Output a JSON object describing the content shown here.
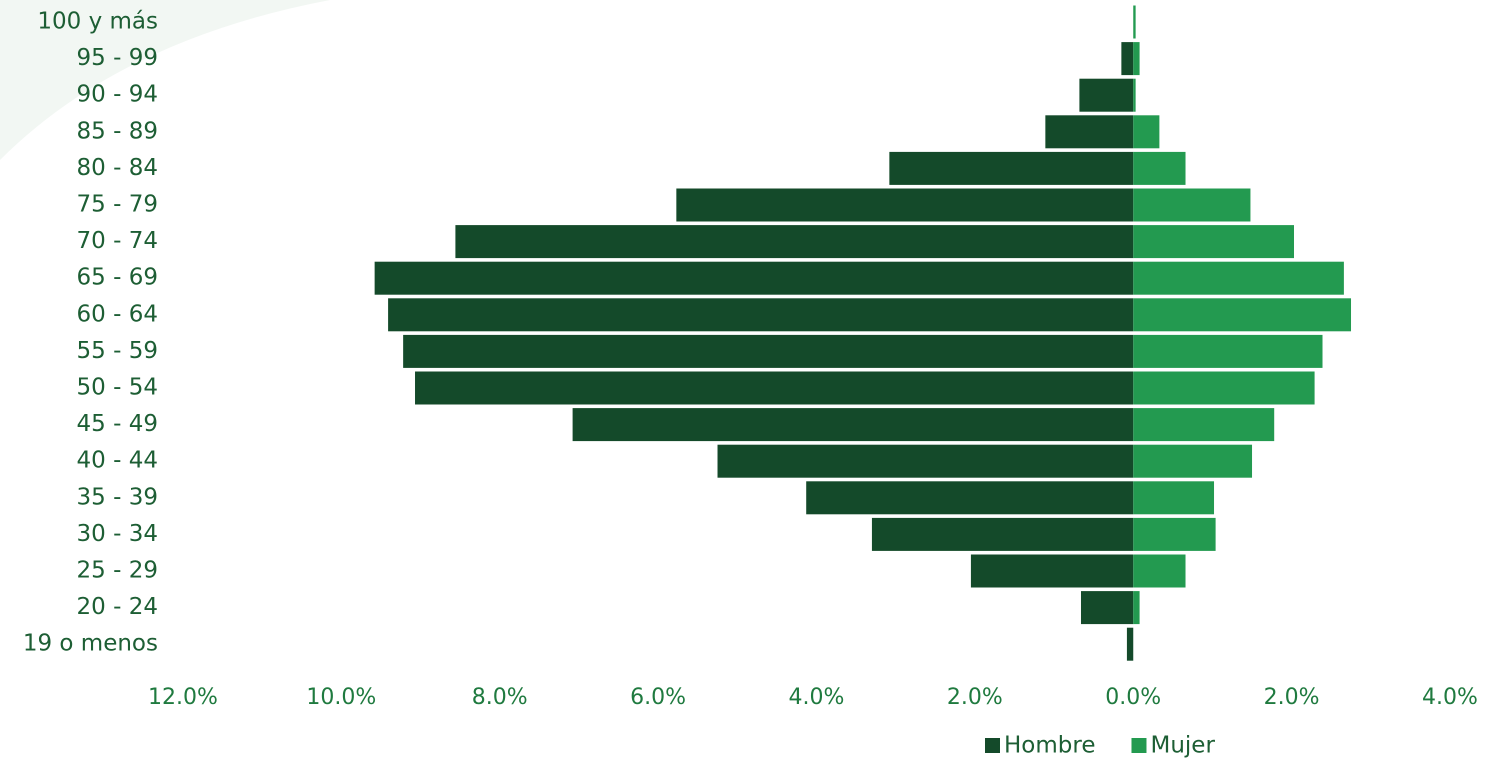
{
  "chart_data": {
    "type": "pyramid",
    "categories": [
      "100 y más",
      "95 - 99",
      "90 - 94",
      "85 - 89",
      "80 - 84",
      "75 - 79",
      "70 - 74",
      "65 - 69",
      "60 - 64",
      "55 - 59",
      "50 - 54",
      "45 - 49",
      "40 - 44",
      "35 - 39",
      "30 - 34",
      "25 - 29",
      "20 - 24",
      "19 o menos"
    ],
    "series": [
      {
        "name": "Hombre",
        "color": "#144a2a",
        "values": [
          0,
          -0.15,
          -0.68,
          -1.11,
          -3.08,
          -5.77,
          -8.56,
          -9.58,
          -9.41,
          -9.22,
          -9.07,
          -7.08,
          -5.25,
          -4.13,
          -3.3,
          -2.05,
          -0.66,
          -0.08
        ]
      },
      {
        "name": "Mujer",
        "color": "#239a50",
        "values": [
          0.03,
          0.08,
          0.03,
          0.33,
          0.66,
          1.48,
          2.03,
          2.66,
          2.75,
          2.39,
          2.29,
          1.78,
          1.5,
          1.02,
          1.04,
          0.66,
          0.08,
          0
        ]
      }
    ],
    "xlim": [
      -12,
      4
    ],
    "xticks": [
      {
        "value": -12,
        "label": "12.0%"
      },
      {
        "value": -10,
        "label": "10.0%"
      },
      {
        "value": -8,
        "label": "8.0%"
      },
      {
        "value": -6,
        "label": "6.0%"
      },
      {
        "value": -4,
        "label": "4.0%"
      },
      {
        "value": -2,
        "label": "2.0%"
      },
      {
        "value": 0,
        "label": "0.0%"
      },
      {
        "value": 2,
        "label": "2.0%"
      },
      {
        "value": 4,
        "label": "4.0%"
      }
    ],
    "grid": false
  }
}
